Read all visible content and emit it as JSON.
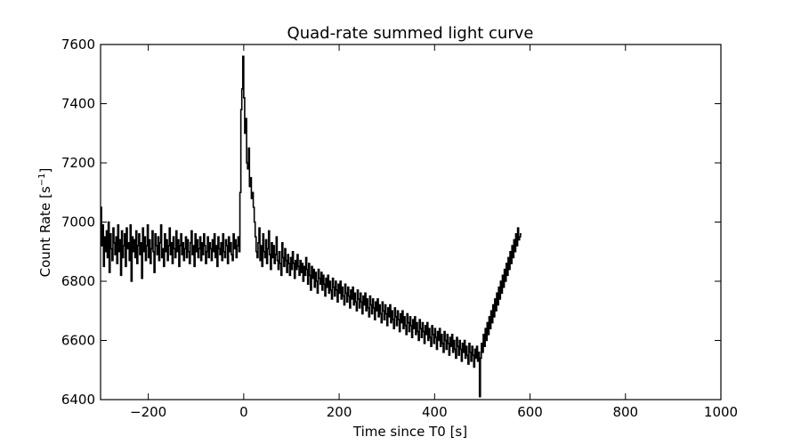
{
  "chart_data": {
    "type": "line",
    "title": "Quad-rate summed light curve",
    "xlabel": "Time since T0 [s]",
    "ylabel": "Count Rate [s",
    "ylabel_sup": "−1",
    "ylabel_end": "]",
    "xlim": [
      -300,
      1000
    ],
    "ylim": [
      6400,
      7600
    ],
    "xticks": [
      -200,
      0,
      200,
      400,
      600,
      800,
      1000
    ],
    "xtick_labels": [
      "−200",
      "0",
      "200",
      "400",
      "600",
      "800",
      "1000"
    ],
    "yticks": [
      6400,
      6600,
      6800,
      7000,
      7200,
      7400,
      7600
    ],
    "ytick_labels": [
      "6400",
      "6600",
      "6800",
      "7000",
      "7200",
      "7400",
      "7600"
    ],
    "grid": false,
    "line_color": "#000000",
    "step": 2,
    "x_start": -300,
    "values": [
      7050,
      6920,
      6990,
      6850,
      6950,
      6900,
      6970,
      6880,
      7000,
      6830,
      6960,
      6910,
      6870,
      6980,
      6930,
      6890,
      6950,
      6860,
      6990,
      6900,
      6940,
      6820,
      6970,
      6880,
      6920,
      6960,
      6850,
      6980,
      6910,
      6930,
      6870,
      6990,
      6800,
      6950,
      6900,
      6940,
      6880,
      6970,
      6860,
      6920,
      6960,
      6890,
      6930,
      6810,
      6980,
      6900,
      6950,
      6870,
      6920,
      6990,
      6880,
      6940,
      6860,
      6910,
      6970,
      6900,
      6830,
      6960,
      6920,
      6890,
      6950,
      6870,
      6930,
      6990,
      6880,
      6910,
      6850,
      6960,
      6900,
      6940,
      6870,
      6920,
      6980,
      6890,
      6930,
      6860,
      6950,
      6910,
      6880,
      6970,
      6900,
      6940,
      6850,
      6920,
      6960,
      6890,
      6930,
      6870,
      6910,
      6950,
      6880,
      6940,
      6900,
      6860,
      6930,
      6970,
      6890,
      6920,
      6850,
      6960,
      6900,
      6940,
      6880,
      6910,
      6950,
      6870,
      6930,
      6890,
      6960,
      6920,
      6860,
      6900,
      6950,
      6880,
      6930,
      6910,
      6870,
      6940,
      6900,
      6960,
      6880,
      6920,
      6850,
      6950,
      6910,
      6890,
      6930,
      6870,
      6960,
      6900,
      6880,
      6940,
      6920,
      6860,
      6950,
      6900,
      6930,
      6890,
      6870,
      6960,
      6910,
      6940,
      6880,
      6920,
      6950,
      6900,
      7100,
      7380,
      7450,
      7560,
      7420,
      7300,
      7350,
      7200,
      7180,
      7250,
      7120,
      7150,
      7080,
      7100,
      7050,
      7000,
      6950,
      6900,
      6880,
      6930,
      6980,
      6870,
      6920,
      6850,
      6960,
      6900,
      6880,
      6940,
      6860,
      6910,
      6970,
      6890,
      6840,
      6930,
      6880,
      6920,
      6860,
      6890,
      6950,
      6870,
      6840,
      6900,
      6860,
      6820,
      6930,
      6880,
      6850,
      6910,
      6870,
      6830,
      6890,
      6860,
      6820,
      6880,
      6840,
      6900,
      6860,
      6810,
      6870,
      6840,
      6890,
      6850,
      6820,
      6870,
      6830,
      6860,
      6800,
      6850,
      6820,
      6880,
      6840,
      6790,
      6860,
      6820,
      6770,
      6850,
      6810,
      6840,
      6780,
      6830,
      6800,
      6760,
      6840,
      6810,
      6790,
      6830,
      6770,
      6820,
      6790,
      6750,
      6810,
      6780,
      6820,
      6760,
      6800,
      6770,
      6740,
      6810,
      6780,
      6750,
      6800,
      6770,
      6730,
      6790,
      6760,
      6800,
      6740,
      6780,
      6750,
      6720,
      6790,
      6760,
      6730,
      6780,
      6750,
      6710,
      6770,
      6740,
      6780,
      6720,
      6760,
      6730,
      6700,
      6770,
      6740,
      6710,
      6760,
      6730,
      6690,
      6750,
      6720,
      6760,
      6700,
      6740,
      6710,
      6680,
      6750,
      6720,
      6690,
      6740,
      6710,
      6670,
      6730,
      6700,
      6740,
      6680,
      6720,
      6690,
      6660,
      6730,
      6700,
      6670,
      6720,
      6690,
      6650,
      6710,
      6680,
      6720,
      6660,
      6700,
      6670,
      6640,
      6710,
      6680,
      6650,
      6700,
      6670,
      6630,
      6690,
      6660,
      6700,
      6640,
      6680,
      6650,
      6620,
      6690,
      6660,
      6630,
      6680,
      6650,
      6610,
      6670,
      6640,
      6680,
      6620,
      6660,
      6630,
      6600,
      6670,
      6640,
      6610,
      6660,
      6630,
      6590,
      6650,
      6620,
      6660,
      6600,
      6640,
      6610,
      6580,
      6650,
      6620,
      6590,
      6640,
      6610,
      6570,
      6630,
      6600,
      6640,
      6580,
      6620,
      6590,
      6560,
      6630,
      6600,
      6570,
      6620,
      6590,
      6550,
      6610,
      6580,
      6620,
      6560,
      6600,
      6570,
      6540,
      6610,
      6580,
      6550,
      6600,
      6570,
      6530,
      6590,
      6560,
      6600,
      6540,
      6580,
      6550,
      6520,
      6590,
      6560,
      6530,
      6580,
      6550,
      6510,
      6570,
      6540,
      6580,
      6530,
      6560,
      6410,
      6540,
      6590,
      6560,
      6620,
      6580,
      6640,
      6600,
      6660,
      6620,
      6680,
      6640,
      6700,
      6660,
      6720,
      6680,
      6740,
      6700,
      6760,
      6720,
      6780,
      6740,
      6800,
      6760,
      6820,
      6780,
      6840,
      6800,
      6860,
      6820,
      6880,
      6840,
      6900,
      6860,
      6920,
      6880,
      6940,
      6900,
      6960,
      6920,
      6980,
      6940,
      6950,
      6960
    ]
  }
}
